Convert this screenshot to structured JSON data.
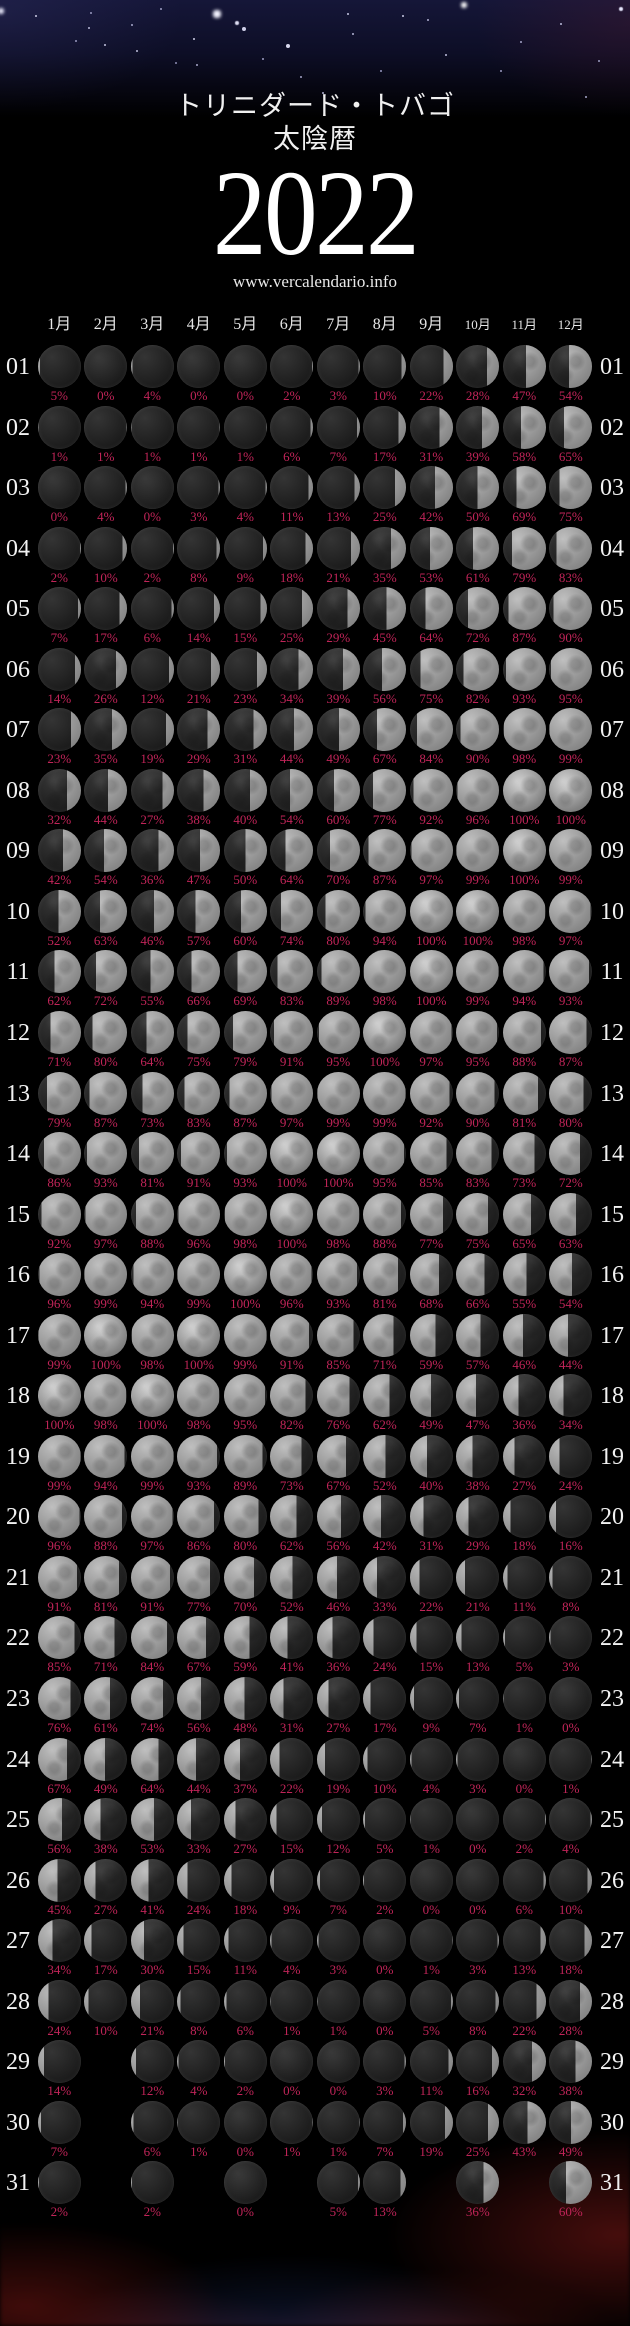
{
  "header": {
    "title_line1": "トリニダード・トバゴ",
    "title_line2": "太陰暦",
    "year": "2022",
    "url": "www.vercalendario.info"
  },
  "months": [
    "1月",
    "2月",
    "3月",
    "4月",
    "5月",
    "6月",
    "7月",
    "8月",
    "9月",
    "10月",
    "11月",
    "12月"
  ],
  "colors": {
    "percent_text": "#c02458",
    "moon_light": "#b6b6b6",
    "moon_dark": "#232323",
    "background": "#000000"
  },
  "chart_data": {
    "type": "table",
    "title": "トリニダード・トバゴ 太陰暦 2022 — moon illumination % by day and month",
    "columns": [
      "1月",
      "2月",
      "3月",
      "4月",
      "5月",
      "6月",
      "7月",
      "8月",
      "9月",
      "10月",
      "11月",
      "12月"
    ],
    "unit": "%"
  },
  "calendar": {
    "rows": [
      {
        "day": "01",
        "values": [
          5,
          0,
          4,
          0,
          0,
          2,
          3,
          10,
          22,
          28,
          47,
          54
        ]
      },
      {
        "day": "02",
        "values": [
          1,
          1,
          1,
          1,
          1,
          6,
          7,
          17,
          31,
          39,
          58,
          65
        ]
      },
      {
        "day": "03",
        "values": [
          0,
          4,
          0,
          3,
          4,
          11,
          13,
          25,
          42,
          50,
          69,
          75
        ]
      },
      {
        "day": "04",
        "values": [
          2,
          10,
          2,
          8,
          9,
          18,
          21,
          35,
          53,
          61,
          79,
          83
        ]
      },
      {
        "day": "05",
        "values": [
          7,
          17,
          6,
          14,
          15,
          25,
          29,
          45,
          64,
          72,
          87,
          90
        ]
      },
      {
        "day": "06",
        "values": [
          14,
          26,
          12,
          21,
          23,
          34,
          39,
          56,
          75,
          82,
          93,
          95
        ]
      },
      {
        "day": "07",
        "values": [
          23,
          35,
          19,
          29,
          31,
          44,
          49,
          67,
          84,
          90,
          98,
          99
        ]
      },
      {
        "day": "08",
        "values": [
          32,
          44,
          27,
          38,
          40,
          54,
          60,
          77,
          92,
          96,
          100,
          100
        ]
      },
      {
        "day": "09",
        "values": [
          42,
          54,
          36,
          47,
          50,
          64,
          70,
          87,
          97,
          99,
          100,
          99
        ]
      },
      {
        "day": "10",
        "values": [
          52,
          63,
          46,
          57,
          60,
          74,
          80,
          94,
          100,
          100,
          98,
          97
        ]
      },
      {
        "day": "11",
        "values": [
          62,
          72,
          55,
          66,
          69,
          83,
          89,
          98,
          100,
          99,
          94,
          93
        ]
      },
      {
        "day": "12",
        "values": [
          71,
          80,
          64,
          75,
          79,
          91,
          95,
          100,
          97,
          95,
          88,
          87
        ]
      },
      {
        "day": "13",
        "values": [
          79,
          87,
          73,
          83,
          87,
          97,
          99,
          99,
          92,
          90,
          81,
          80
        ]
      },
      {
        "day": "14",
        "values": [
          86,
          93,
          81,
          91,
          93,
          100,
          100,
          95,
          85,
          83,
          73,
          72
        ]
      },
      {
        "day": "15",
        "values": [
          92,
          97,
          88,
          96,
          98,
          100,
          98,
          88,
          77,
          75,
          65,
          63
        ]
      },
      {
        "day": "16",
        "values": [
          96,
          99,
          94,
          99,
          100,
          96,
          93,
          81,
          68,
          66,
          55,
          54
        ]
      },
      {
        "day": "17",
        "values": [
          99,
          100,
          98,
          100,
          99,
          91,
          85,
          71,
          59,
          57,
          46,
          44
        ]
      },
      {
        "day": "18",
        "values": [
          100,
          98,
          100,
          98,
          95,
          82,
          76,
          62,
          49,
          47,
          36,
          34
        ]
      },
      {
        "day": "19",
        "values": [
          99,
          94,
          99,
          93,
          89,
          73,
          67,
          52,
          40,
          38,
          27,
          24
        ]
      },
      {
        "day": "20",
        "values": [
          96,
          88,
          97,
          86,
          80,
          62,
          56,
          42,
          31,
          29,
          18,
          16
        ]
      },
      {
        "day": "21",
        "values": [
          91,
          81,
          91,
          77,
          70,
          52,
          46,
          33,
          22,
          21,
          11,
          8
        ]
      },
      {
        "day": "22",
        "values": [
          85,
          71,
          84,
          67,
          59,
          41,
          36,
          24,
          15,
          13,
          5,
          3
        ]
      },
      {
        "day": "23",
        "values": [
          76,
          61,
          74,
          56,
          48,
          31,
          27,
          17,
          9,
          7,
          1,
          0
        ]
      },
      {
        "day": "24",
        "values": [
          67,
          49,
          64,
          44,
          37,
          22,
          19,
          10,
          4,
          3,
          0,
          1
        ]
      },
      {
        "day": "25",
        "values": [
          56,
          38,
          53,
          33,
          27,
          15,
          12,
          5,
          1,
          0,
          2,
          4
        ]
      },
      {
        "day": "26",
        "values": [
          45,
          27,
          41,
          24,
          18,
          9,
          7,
          2,
          0,
          0,
          6,
          10
        ]
      },
      {
        "day": "27",
        "values": [
          34,
          17,
          30,
          15,
          11,
          4,
          3,
          0,
          1,
          3,
          13,
          18
        ]
      },
      {
        "day": "28",
        "values": [
          24,
          10,
          21,
          8,
          6,
          1,
          1,
          0,
          5,
          8,
          22,
          28
        ]
      },
      {
        "day": "29",
        "values": [
          14,
          null,
          12,
          4,
          2,
          0,
          0,
          3,
          11,
          16,
          32,
          38
        ]
      },
      {
        "day": "30",
        "values": [
          7,
          null,
          6,
          1,
          0,
          1,
          1,
          7,
          19,
          25,
          43,
          49
        ]
      },
      {
        "day": "31",
        "values": [
          2,
          null,
          2,
          null,
          0,
          null,
          5,
          13,
          null,
          36,
          null,
          60
        ]
      }
    ]
  }
}
